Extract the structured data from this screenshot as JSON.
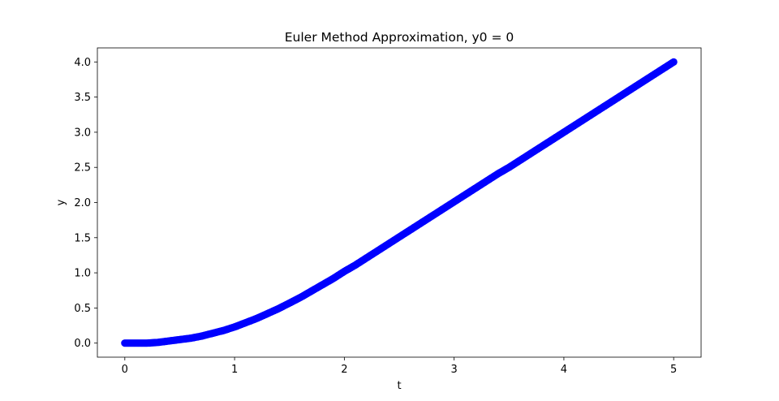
{
  "chart_data": {
    "type": "scatter",
    "title": "Euler Method Approximation, y0 = 0",
    "xlabel": "t",
    "ylabel": "y",
    "xlim": [
      -0.25,
      5.25
    ],
    "ylim": [
      -0.2,
      4.2
    ],
    "xticks": [
      0,
      1,
      2,
      3,
      4,
      5
    ],
    "xtick_labels": [
      "0",
      "1",
      "2",
      "3",
      "4",
      "5"
    ],
    "yticks": [
      0,
      0.5,
      1,
      1.5,
      2,
      2.5,
      3,
      3.5,
      4
    ],
    "ytick_labels": [
      "0.0",
      "0.5",
      "1.0",
      "1.5",
      "2.0",
      "2.5",
      "3.0",
      "3.5",
      "4.0"
    ],
    "grid": false,
    "legend": "none",
    "marker_color": "#0000ff",
    "series": [
      {
        "x": [
          0,
          0.1,
          0.2,
          0.3,
          0.4,
          0.5,
          0.6,
          0.7,
          0.8,
          0.9,
          1.0,
          1.1,
          1.2,
          1.3,
          1.4,
          1.5,
          1.6,
          1.7,
          1.8,
          1.9,
          2.0,
          2.1,
          2.2,
          2.3,
          2.4,
          2.5,
          2.6,
          2.7,
          2.8,
          2.9,
          3.0,
          3.1,
          3.2,
          3.3,
          3.4,
          3.5,
          3.6,
          3.7,
          3.8,
          3.9,
          4.0,
          4.1,
          4.2,
          4.3,
          4.4,
          4.5,
          4.6,
          4.7,
          4.8,
          4.9,
          5.0
        ],
        "y": [
          0,
          0.0,
          0.0,
          0.01,
          0.03,
          0.05,
          0.07,
          0.1,
          0.14,
          0.18,
          0.23,
          0.29,
          0.35,
          0.42,
          0.49,
          0.57,
          0.65,
          0.74,
          0.83,
          0.92,
          1.02,
          1.11,
          1.21,
          1.31,
          1.41,
          1.51,
          1.61,
          1.71,
          1.81,
          1.91,
          2.01,
          2.11,
          2.21,
          2.31,
          2.41,
          2.5,
          2.6,
          2.7,
          2.8,
          2.9,
          3.0,
          3.1,
          3.2,
          3.3,
          3.4,
          3.5,
          3.6,
          3.7,
          3.8,
          3.9,
          4.0
        ]
      }
    ]
  }
}
